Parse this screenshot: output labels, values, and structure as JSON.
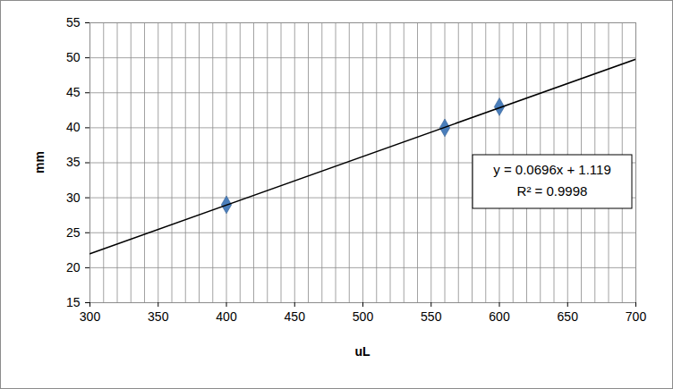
{
  "chart_data": {
    "type": "scatter",
    "x_label": "uL",
    "y_label": "mm",
    "xlim": [
      300,
      700
    ],
    "ylim": [
      15,
      55
    ],
    "xticks": [
      300,
      350,
      400,
      450,
      500,
      550,
      600,
      650,
      700
    ],
    "yticks": [
      15,
      20,
      25,
      30,
      35,
      40,
      45,
      50,
      55
    ],
    "grid": true,
    "series": [
      {
        "type": "scatter",
        "marker": "diamond",
        "color": "#4a7ebb",
        "x": [
          400,
          560,
          600
        ],
        "values": [
          29,
          40,
          43
        ]
      },
      {
        "type": "line",
        "line_style": "solid",
        "color": "#000000",
        "x": [
          300,
          700
        ],
        "values": [
          22.0,
          49.8
        ]
      }
    ],
    "annotations": [
      "y = 0.0696x + 1.119",
      "R² = 0.9998"
    ]
  }
}
